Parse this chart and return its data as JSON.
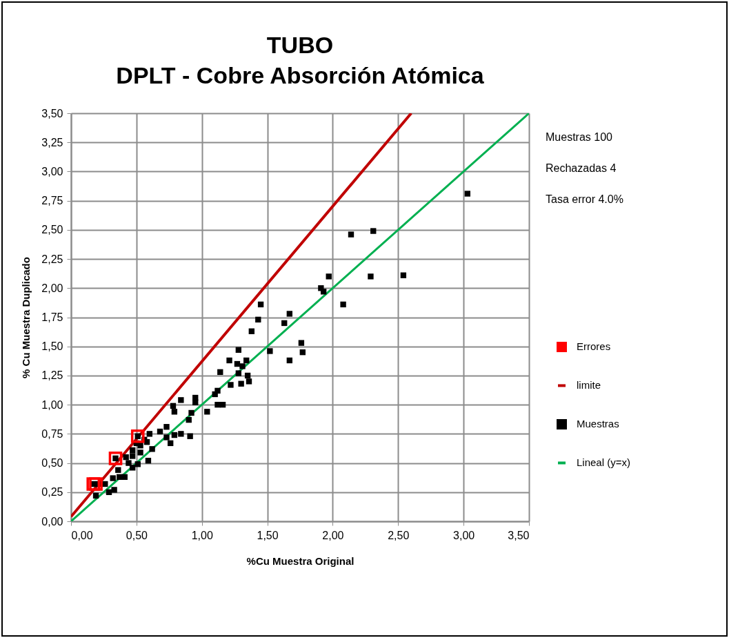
{
  "chart_data": {
    "type": "scatter",
    "title": "TUBO",
    "subtitle": "DPLT - Cobre Absorción Atómica",
    "xlabel": "%Cu Muestra Original",
    "ylabel": "% Cu Muestra Duplicado",
    "xlim": [
      0,
      3.5
    ],
    "ylim": [
      0,
      3.5
    ],
    "xticks": [
      {
        "value": 0,
        "label": "0,00"
      },
      {
        "value": 0.5,
        "label": "0,50"
      },
      {
        "value": 1,
        "label": "1,00"
      },
      {
        "value": 1.5,
        "label": "1,50"
      },
      {
        "value": 2,
        "label": "2,00"
      },
      {
        "value": 2.5,
        "label": "2,50"
      },
      {
        "value": 3,
        "label": "3,00"
      },
      {
        "value": 3.5,
        "label": "3,50"
      }
    ],
    "yticks": [
      {
        "value": 0,
        "label": "0,00"
      },
      {
        "value": 0.25,
        "label": "0,25"
      },
      {
        "value": 0.5,
        "label": "0,50"
      },
      {
        "value": 0.75,
        "label": "0,75"
      },
      {
        "value": 1,
        "label": "1,00"
      },
      {
        "value": 1.25,
        "label": "1,25"
      },
      {
        "value": 1.5,
        "label": "1,50"
      },
      {
        "value": 1.75,
        "label": "1,75"
      },
      {
        "value": 2,
        "label": "2,00"
      },
      {
        "value": 2.25,
        "label": "2,25"
      },
      {
        "value": 2.5,
        "label": "2,50"
      },
      {
        "value": 2.75,
        "label": "2,75"
      },
      {
        "value": 3,
        "label": "3,00"
      },
      {
        "value": 3.25,
        "label": "3,25"
      },
      {
        "value": 3.5,
        "label": "3,50"
      }
    ],
    "grid": true,
    "legend": "right",
    "annotations": [
      "Muestras      100",
      "Rechazadas    4",
      "Tasa error       4.0%"
    ],
    "series": [
      {
        "name": "Errores",
        "marker": "square",
        "color": "#ff0000",
        "x": [
          0.17,
          0.19,
          0.34,
          0.51
        ],
        "values": [
          0.32,
          0.32,
          0.54,
          0.73
        ]
      },
      {
        "name": "limite",
        "type": "line",
        "marker": "none",
        "color": "#c00000",
        "x": [
          0,
          2.6
        ],
        "values": [
          0.04,
          3.5
        ]
      },
      {
        "name": "Muestras",
        "marker": "square",
        "color": "#000000",
        "x": [
          3.03,
          2.14,
          2.31,
          1.97,
          2.29,
          2.54,
          1.91,
          1.93,
          2.08,
          1.45,
          1.43,
          1.67,
          1.63,
          1.38,
          1.76,
          1.77,
          1.52,
          1.67,
          1.28,
          1.21,
          1.27,
          1.34,
          1.31,
          1.28,
          1.35,
          1.36,
          1.3,
          1.22,
          1.14,
          1.12,
          1.1,
          1.12,
          1.16,
          1.04,
          0.95,
          0.95,
          0.84,
          0.78,
          0.79,
          0.92,
          0.9,
          0.73,
          0.68,
          0.79,
          0.84,
          0.91,
          0.76,
          0.73,
          0.6,
          0.56,
          0.62,
          0.53,
          0.47,
          0.42,
          0.47,
          0.53,
          0.59,
          0.51,
          0.47,
          0.44,
          0.36,
          0.41,
          0.37,
          0.32,
          0.26,
          0.21,
          0.17,
          0.34,
          0.51,
          0.33,
          0.29,
          0.19,
          0.5,
          0.58
        ],
        "values": [
          2.81,
          2.46,
          2.49,
          2.1,
          2.1,
          2.11,
          2.0,
          1.97,
          1.86,
          1.86,
          1.73,
          1.78,
          1.7,
          1.63,
          1.53,
          1.45,
          1.46,
          1.38,
          1.47,
          1.38,
          1.35,
          1.38,
          1.33,
          1.27,
          1.25,
          1.2,
          1.18,
          1.17,
          1.28,
          1.12,
          1.09,
          1.0,
          1.0,
          0.94,
          1.06,
          1.02,
          1.04,
          0.99,
          0.94,
          0.93,
          0.87,
          0.81,
          0.77,
          0.74,
          0.75,
          0.73,
          0.67,
          0.72,
          0.75,
          0.7,
          0.62,
          0.65,
          0.61,
          0.55,
          0.56,
          0.59,
          0.52,
          0.49,
          0.46,
          0.5,
          0.44,
          0.38,
          0.38,
          0.37,
          0.32,
          0.32,
          0.32,
          0.54,
          0.73,
          0.27,
          0.25,
          0.22,
          0.67,
          0.68
        ]
      },
      {
        "name": "Lineal (y=x)",
        "type": "line",
        "marker": "none",
        "color": "#00b050",
        "x": [
          0,
          3.5
        ],
        "values": [
          0,
          3.5
        ]
      }
    ]
  }
}
